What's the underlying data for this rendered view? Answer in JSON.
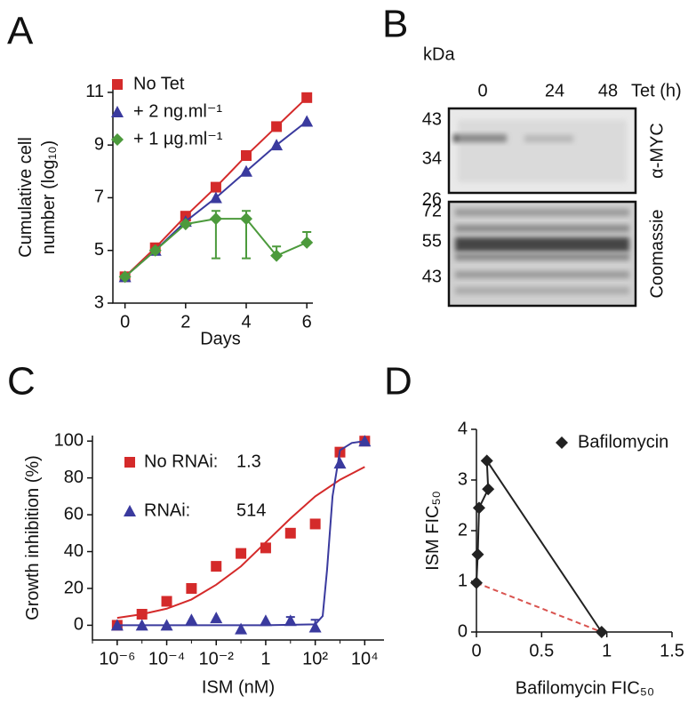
{
  "chart_data": [
    {
      "type": "line",
      "panel_label": "A",
      "x": [
        0,
        1,
        2,
        3,
        4,
        5,
        6
      ],
      "xlim": [
        -0.4,
        6.2
      ],
      "xticks": [
        0,
        2,
        4,
        6
      ],
      "ylim": [
        3,
        11.3
      ],
      "yticks": [
        3,
        5,
        7,
        9,
        11
      ],
      "xlabel": "Days",
      "ylabel": [
        "Cumulative cell",
        "number (log₁₀)"
      ],
      "series": [
        {
          "name": "No Tet",
          "color": "#d42a2a",
          "marker": "square",
          "connect": true,
          "values": [
            4,
            5.1,
            6.3,
            7.4,
            8.6,
            9.7,
            10.8
          ]
        },
        {
          "name": "+ 2 ng.ml⁻¹",
          "color": "#3a3a9e",
          "marker": "triangle",
          "connect": true,
          "values": [
            4,
            5.0,
            6.1,
            7.0,
            8.0,
            9.0,
            9.9
          ]
        },
        {
          "name": "+ 1 µg.ml⁻¹",
          "color": "#4c9a3c",
          "marker": "diamond",
          "connect": true,
          "values": [
            4,
            5.0,
            6.0,
            6.2,
            6.2,
            4.8,
            5.3
          ],
          "yerr_minus": [
            null,
            null,
            null,
            1.5,
            1.5,
            null,
            null
          ],
          "yerr_plus": [
            null,
            null,
            null,
            0.3,
            0.3,
            0.35,
            0.4
          ]
        }
      ]
    },
    {
      "type": "blot",
      "panel_label": "B",
      "unit_label": "kDa",
      "lanes": [
        0,
        24,
        48
      ],
      "lane_title": "Tet (h)",
      "panels": [
        {
          "label": "α-MYC",
          "markers": [
            43,
            34,
            26
          ]
        },
        {
          "label": "Coomassie",
          "markers": [
            72,
            55,
            43
          ]
        }
      ]
    },
    {
      "type": "scatter",
      "panel_label": "C",
      "xscale": "log",
      "x": [
        1e-06,
        1e-05,
        0.0001,
        0.001,
        0.01,
        0.1,
        1,
        10,
        100,
        1000,
        10000
      ],
      "xlim": [
        1e-07,
        60000.0
      ],
      "xticks": [
        {
          "value": 1e-06,
          "label": "10⁻⁶"
        },
        {
          "value": 0.0001,
          "label": "10⁻⁴"
        },
        {
          "value": 0.01,
          "label": "10⁻²"
        },
        1,
        {
          "value": 100,
          "label": "10²"
        },
        {
          "value": 10000,
          "label": "10⁴"
        }
      ],
      "ylim": [
        -8,
        103
      ],
      "yticks": [
        0,
        20,
        40,
        60,
        80,
        100
      ],
      "xlabel": "ISM (nM)",
      "ylabel": [
        "Growth inhibition (%)"
      ],
      "series": [
        {
          "name": "No RNAi:",
          "ec50": 1.3,
          "color": "#d42a2a",
          "marker": "square",
          "values": [
            0,
            6,
            13,
            20,
            32,
            39,
            42,
            50,
            55,
            94,
            100
          ],
          "fit": {
            "x": [
              1e-06,
              1e-05,
              0.0001,
              0.001,
              0.01,
              0.1,
              1,
              10,
              100,
              1000,
              10000
            ],
            "values": [
              4,
              6,
              9,
              14,
              22,
              32,
              45,
              58,
              70,
              79,
              86
            ]
          }
        },
        {
          "name": "RNAi:",
          "ec50": 514,
          "color": "#3a3a9e",
          "marker": "triangle",
          "values": [
            0,
            0,
            0,
            3,
            4,
            -2,
            2.5,
            2.5,
            -1,
            88,
            100
          ],
          "yerr_minus": [
            null,
            null,
            null,
            null,
            null,
            null,
            null,
            null,
            null,
            null,
            null
          ],
          "yerr_plus": [
            null,
            null,
            null,
            null,
            null,
            null,
            null,
            2,
            4,
            null,
            null
          ],
          "fit": {
            "x": [
              1e-06,
              1,
              100,
              200,
              300,
              500,
              1000,
              3000,
              10000
            ],
            "values": [
              0,
              0,
              0.5,
              5,
              30,
              70,
              95,
              99,
              100
            ]
          }
        }
      ]
    },
    {
      "type": "scatter",
      "panel_label": "D",
      "xlim": [
        0,
        1.5
      ],
      "xticks": [
        0,
        0.5,
        1,
        1.5
      ],
      "ylim": [
        0,
        4
      ],
      "yticks": [
        0,
        1,
        2,
        3,
        4
      ],
      "xlabel": "Bafilomycin FIC₅₀",
      "ylabel": [
        "ISM FIC₅₀"
      ],
      "series": [
        {
          "name": "Bafilomycin",
          "color": "#222222",
          "marker": "diamond",
          "connect": true,
          "x": [
            0,
            0.01,
            0.02,
            0.09,
            0.08,
            0.96
          ],
          "values": [
            0.97,
            1.53,
            2.45,
            2.82,
            3.38,
            0
          ]
        }
      ],
      "reference_line": {
        "x": [
          0,
          0.96
        ],
        "values": [
          0.97,
          0
        ],
        "color": "#d9534f"
      }
    }
  ]
}
